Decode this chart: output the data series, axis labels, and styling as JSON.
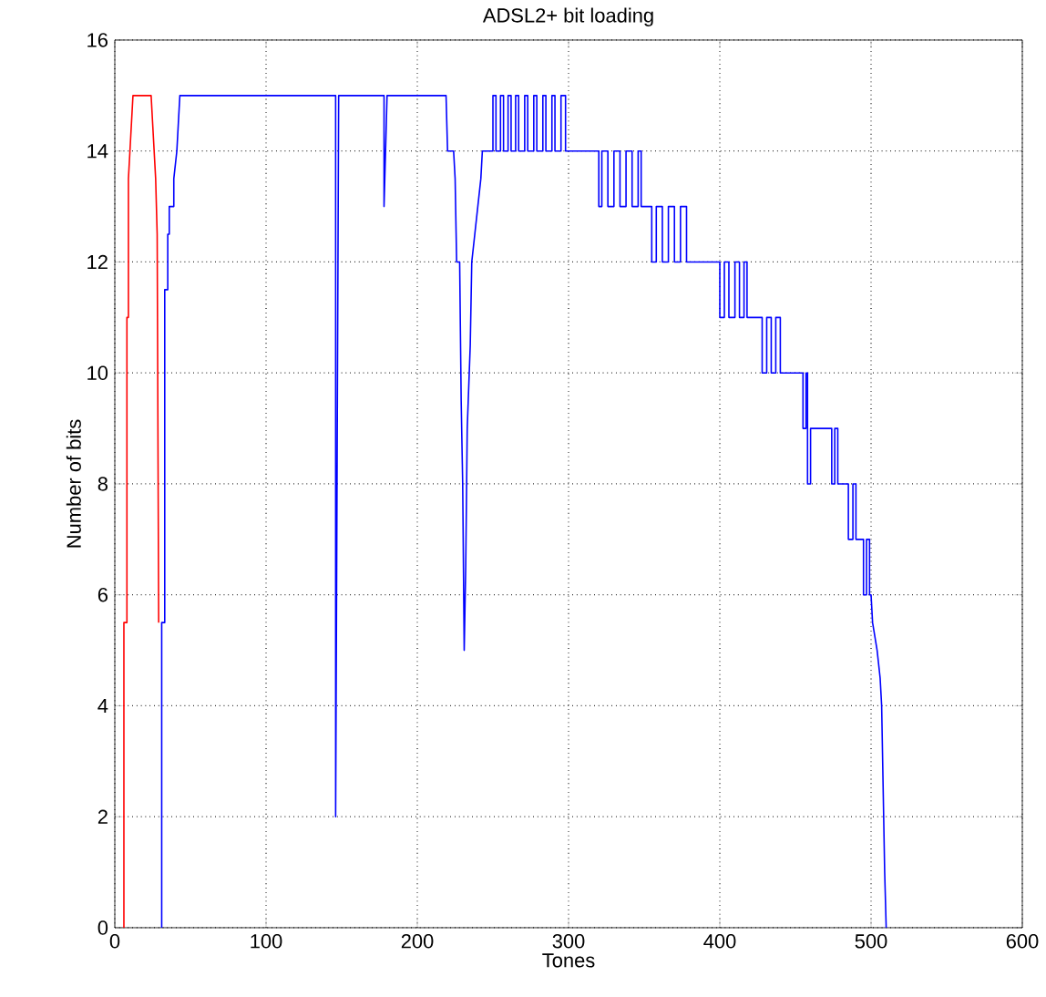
{
  "chart_data": {
    "type": "line",
    "title": "ADSL2+ bit loading",
    "xlabel": "Tones",
    "ylabel": "Number of bits",
    "xlim": [
      0,
      600
    ],
    "ylim": [
      0,
      16
    ],
    "xticks": [
      0,
      100,
      200,
      300,
      400,
      500,
      600
    ],
    "yticks": [
      0,
      2,
      4,
      6,
      8,
      10,
      12,
      14,
      16
    ],
    "grid": true,
    "marker": "none",
    "line_style": "solid",
    "series": [
      {
        "color": "#ff0000",
        "x": [
          6,
          6,
          8,
          8,
          9,
          9,
          10,
          12,
          24,
          25,
          27,
          28,
          29
        ],
        "values": [
          0,
          5.5,
          5.5,
          11,
          11,
          13.5,
          14,
          15,
          15,
          14.5,
          13.5,
          12.5,
          5.5
        ]
      },
      {
        "color": "#0000ff",
        "x": [
          31,
          31,
          33,
          33,
          35,
          35,
          36,
          36,
          39,
          39,
          41,
          42,
          43,
          146,
          146,
          147,
          148,
          178,
          178,
          179,
          180,
          219,
          220,
          224,
          225,
          226,
          228,
          229,
          230,
          231,
          232,
          233,
          235,
          236,
          238,
          240,
          242,
          243,
          250,
          250,
          252,
          252,
          255,
          255,
          257,
          257,
          260,
          260,
          262,
          262,
          265,
          265,
          267,
          267,
          271,
          271,
          273,
          273,
          277,
          277,
          279,
          279,
          283,
          283,
          285,
          285,
          289,
          289,
          291,
          291,
          295,
          295,
          298,
          298,
          320,
          320,
          322,
          322,
          326,
          326,
          330,
          330,
          334,
          334,
          338,
          338,
          342,
          342,
          346,
          346,
          348,
          348,
          355,
          355,
          358,
          358,
          362,
          362,
          366,
          366,
          370,
          370,
          374,
          374,
          378,
          378,
          400,
          400,
          403,
          403,
          406,
          406,
          410,
          410,
          413,
          413,
          416,
          416,
          418,
          418,
          428,
          428,
          431,
          431,
          434,
          434,
          437,
          437,
          440,
          440,
          455,
          455,
          457,
          457,
          458,
          458,
          460,
          460,
          474,
          474,
          476,
          476,
          478,
          478,
          485,
          485,
          488,
          488,
          490,
          490,
          495,
          495,
          497,
          497,
          499,
          499,
          500,
          501,
          504,
          506,
          507,
          509,
          510
        ],
        "values": [
          0,
          5.5,
          5.5,
          11.5,
          11.5,
          12.5,
          12.5,
          13,
          13,
          13.5,
          14,
          14.5,
          15,
          15,
          2,
          8.5,
          15,
          15,
          13,
          14,
          15,
          15,
          14,
          14,
          13.5,
          12,
          12,
          9.5,
          8,
          5,
          6.5,
          9,
          10.5,
          12,
          12.5,
          13,
          13.5,
          14,
          14,
          15,
          15,
          14,
          14,
          15,
          15,
          14,
          14,
          15,
          15,
          14,
          14,
          15,
          15,
          14,
          14,
          15,
          15,
          14,
          14,
          15,
          15,
          14,
          14,
          15,
          15,
          14,
          14,
          15,
          15,
          14,
          14,
          15,
          15,
          14,
          14,
          13,
          13,
          14,
          14,
          13,
          13,
          14,
          14,
          13,
          13,
          14,
          14,
          13,
          13,
          14,
          14,
          13,
          13,
          12,
          12,
          13,
          13,
          12,
          12,
          13,
          13,
          12,
          12,
          13,
          13,
          12,
          12,
          11,
          11,
          12,
          12,
          11,
          11,
          12,
          12,
          11,
          11,
          12,
          12,
          11,
          11,
          10,
          10,
          11,
          11,
          10,
          10,
          11,
          11,
          10,
          10,
          9,
          9,
          10,
          10,
          8,
          8,
          9,
          9,
          8,
          8,
          9,
          9,
          8,
          8,
          7,
          7,
          8,
          8,
          7,
          7,
          6,
          6,
          7,
          7,
          6,
          6,
          5.5,
          5,
          4.5,
          4,
          1,
          0
        ]
      }
    ]
  }
}
